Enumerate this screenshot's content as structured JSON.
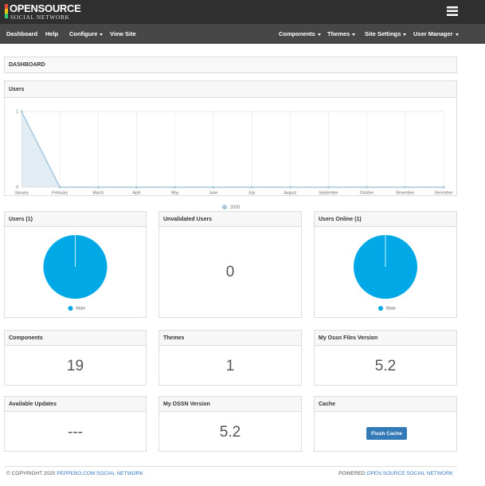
{
  "header": {
    "logo_title": "OPENSOURCE",
    "logo_subtitle": "SOCIAL NETWORK"
  },
  "nav": {
    "left": [
      "Dashboard",
      "Help",
      "Configure",
      "View Site"
    ],
    "right": [
      "Components",
      "Themes",
      "Site Settings",
      "User Manager"
    ]
  },
  "dashboard_title": "DASHBOARD",
  "chart_data": [
    {
      "type": "line",
      "title": "Users",
      "categories": [
        "January",
        "February",
        "March",
        "April",
        "May",
        "June",
        "July",
        "August",
        "September",
        "October",
        "November",
        "December"
      ],
      "series": [
        {
          "name": "2020",
          "color": "#a9c8dc",
          "values": [
            1,
            0,
            0,
            0,
            0,
            0,
            0,
            0,
            0,
            0,
            0,
            0
          ]
        }
      ],
      "ylim": [
        0,
        1
      ],
      "yticks": [
        0,
        1
      ],
      "grid": true
    },
    {
      "type": "pie",
      "title": "Users (1)",
      "categories": [
        "Male"
      ],
      "values": [
        1
      ],
      "colors": [
        "#00a9e6"
      ]
    },
    {
      "type": "pie",
      "title": "Users Online (1)",
      "categories": [
        "Male"
      ],
      "values": [
        1
      ],
      "colors": [
        "#00a9e6"
      ]
    }
  ],
  "panels": [
    {
      "title": "Unvalidated Users",
      "value": "0"
    },
    {
      "title": "Components",
      "value": "19"
    },
    {
      "title": "Themes",
      "value": "1"
    },
    {
      "title": "My Ossn Files Version",
      "value": "5.2"
    },
    {
      "title": "Available Updates",
      "value": "---"
    },
    {
      "title": "My OSSN Version",
      "value": "5.2"
    },
    {
      "title": "Cache",
      "button": "Flush Cache"
    }
  ],
  "footer": {
    "copyright": "© COPYRIGHT 2020",
    "site_link": "PEPPEBO.COM SOCIAL NETWORK",
    "powered": "POWERED",
    "powered_link": "OPEN SOURCE SOCIAL NETWORK"
  }
}
